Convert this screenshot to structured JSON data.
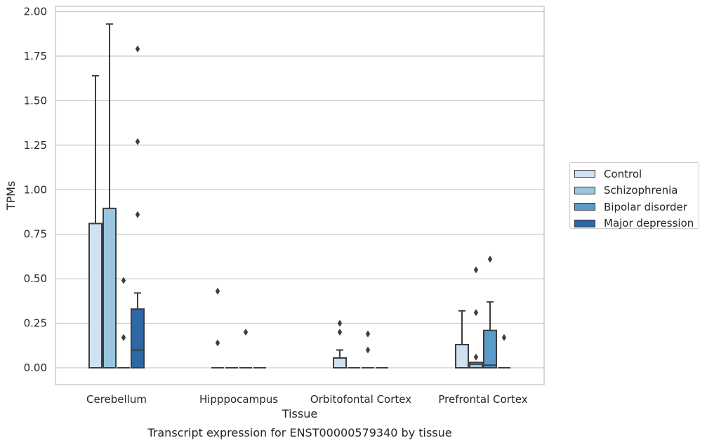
{
  "chart_data": {
    "type": "box",
    "title": "",
    "caption": "Transcript expression for ENST00000579340 by tissue",
    "xlabel": "Tissue",
    "ylabel": "TPMs",
    "ylim": [
      -0.1,
      2.02
    ],
    "yticks": [
      "0.00",
      "0.25",
      "0.50",
      "0.75",
      "1.00",
      "1.25",
      "1.50",
      "1.75",
      "2.00"
    ],
    "grid": true,
    "legend_position": "right",
    "categories": [
      "Cerebellum",
      "Hipppocampus",
      "Orbitofontal Cortex",
      "Prefrontal Cortex"
    ],
    "series": [
      {
        "name": "Control",
        "color": "#d0e1f2",
        "boxes": [
          {
            "q1": 0,
            "median": 0,
            "q3": 0.81,
            "whislo": 0,
            "whishi": 1.64,
            "fliers": []
          },
          {
            "q1": 0,
            "median": 0,
            "q3": 0,
            "whislo": 0,
            "whishi": 0,
            "fliers": [
              0.14,
              0.43
            ]
          },
          {
            "q1": 0,
            "median": 0,
            "q3": 0.055,
            "whislo": 0,
            "whishi": 0.1,
            "fliers": [
              0.2,
              0.25
            ]
          },
          {
            "q1": 0,
            "median": 0,
            "q3": 0.13,
            "whislo": 0,
            "whishi": 0.32,
            "fliers": []
          }
        ]
      },
      {
        "name": "Schizophrenia",
        "color": "#9ac5df",
        "boxes": [
          {
            "q1": 0,
            "median": 0,
            "q3": 0.895,
            "whislo": 0,
            "whishi": 1.93,
            "fliers": []
          },
          {
            "q1": 0,
            "median": 0,
            "q3": 0,
            "whislo": 0,
            "whishi": 0,
            "fliers": []
          },
          {
            "q1": 0,
            "median": 0,
            "q3": 0,
            "whislo": 0,
            "whishi": 0,
            "fliers": []
          },
          {
            "q1": 0,
            "median": 0.02,
            "q3": 0.03,
            "whislo": 0,
            "whishi": 0.03,
            "fliers": [
              0.06,
              0.31,
              0.55
            ]
          }
        ]
      },
      {
        "name": "Bipolar disorder",
        "color": "#5a9cc9",
        "boxes": [
          {
            "q1": 0,
            "median": 0,
            "q3": 0,
            "whislo": 0,
            "whishi": 0,
            "fliers": [
              0.17,
              0.49
            ]
          },
          {
            "q1": 0,
            "median": 0,
            "q3": 0,
            "whislo": 0,
            "whishi": 0,
            "fliers": [
              0.2
            ]
          },
          {
            "q1": 0,
            "median": 0,
            "q3": 0,
            "whislo": 0,
            "whishi": 0,
            "fliers": [
              0.1,
              0.19
            ]
          },
          {
            "q1": 0,
            "median": 0.015,
            "q3": 0.21,
            "whislo": 0,
            "whishi": 0.37,
            "fliers": [
              0.61
            ]
          }
        ]
      },
      {
        "name": "Major depression",
        "color": "#2e67a3",
        "boxes": [
          {
            "q1": 0,
            "median": 0.1,
            "q3": 0.33,
            "whislo": 0,
            "whishi": 0.42,
            "fliers": [
              0.86,
              1.27,
              1.79
            ]
          },
          {
            "q1": 0,
            "median": 0,
            "q3": 0,
            "whislo": 0,
            "whishi": 0,
            "fliers": []
          },
          {
            "q1": 0,
            "median": 0,
            "q3": 0,
            "whislo": 0,
            "whishi": 0,
            "fliers": []
          },
          {
            "q1": 0,
            "median": 0,
            "q3": 0,
            "whislo": 0,
            "whishi": 0,
            "fliers": [
              0.17
            ]
          }
        ]
      }
    ]
  }
}
